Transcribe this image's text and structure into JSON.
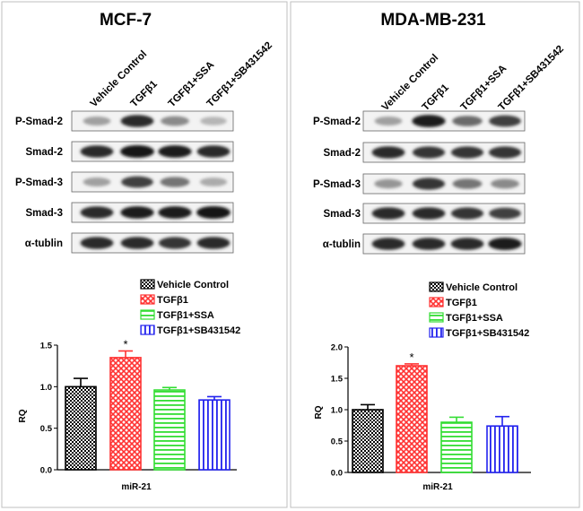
{
  "chart_data": [
    {
      "type": "bar",
      "title": "MCF-7",
      "xlabel": "miR-21",
      "ylabel": "RQ",
      "ylim": [
        0,
        1.5
      ],
      "yticks": [
        "0.0",
        "0.5",
        "1.0",
        "1.5"
      ],
      "categories": [
        "Vehicle Control",
        "TGFβ1",
        "TGFβ1+SSA",
        "TGFβ1+SB431542"
      ],
      "values": [
        1.0,
        1.35,
        0.96,
        0.84
      ],
      "errors": [
        0.1,
        0.08,
        0.03,
        0.04
      ],
      "colors": [
        "#000000",
        "#ff3333",
        "#33dd33",
        "#2222ee"
      ],
      "significance": [
        "",
        "*",
        "",
        ""
      ],
      "legend_placement": "top-right",
      "blot_lanes": [
        "Vehicle Control",
        "TGFβ1",
        "TGFβ1+SSA",
        "TGFβ1+SB431542"
      ],
      "blot_rows": [
        "P-Smad-2",
        "Smad-2",
        "P-Smad-3",
        "Smad-3",
        "α-tublin"
      ],
      "band_intensity": [
        [
          0.35,
          0.9,
          0.45,
          0.25
        ],
        [
          0.9,
          1.0,
          0.95,
          0.9
        ],
        [
          0.35,
          0.8,
          0.55,
          0.3
        ],
        [
          0.9,
          0.95,
          0.95,
          1.0
        ],
        [
          0.9,
          0.9,
          0.85,
          0.9
        ]
      ]
    },
    {
      "type": "bar",
      "title": "MDA-MB-231",
      "xlabel": "miR-21",
      "ylabel": "RQ",
      "ylim": [
        0,
        2.0
      ],
      "yticks": [
        "0.0",
        "0.5",
        "1.0",
        "1.5",
        "2.0"
      ],
      "categories": [
        "Vehicle Control",
        "TGFβ1",
        "TGFβ1+SSA",
        "TGFβ1+SB431542"
      ],
      "values": [
        1.0,
        1.7,
        0.8,
        0.74
      ],
      "errors": [
        0.08,
        0.03,
        0.08,
        0.15
      ],
      "colors": [
        "#000000",
        "#ff3333",
        "#33dd33",
        "#2222ee"
      ],
      "significance": [
        "",
        "*",
        "",
        ""
      ],
      "legend_placement": "top-right",
      "blot_lanes": [
        "Vehicle Control",
        "TGFβ1",
        "TGFβ1+SSA",
        "TGFβ1+SB431542"
      ],
      "blot_rows": [
        "P-Smad-2",
        "Smad-2",
        "P-Smad-3",
        "Smad-3",
        "α-tublin"
      ],
      "band_intensity": [
        [
          0.35,
          0.95,
          0.6,
          0.8
        ],
        [
          0.9,
          0.85,
          0.85,
          0.85
        ],
        [
          0.4,
          0.85,
          0.55,
          0.45
        ],
        [
          0.9,
          0.9,
          0.85,
          0.8
        ],
        [
          0.9,
          0.9,
          0.9,
          0.95
        ]
      ]
    }
  ]
}
